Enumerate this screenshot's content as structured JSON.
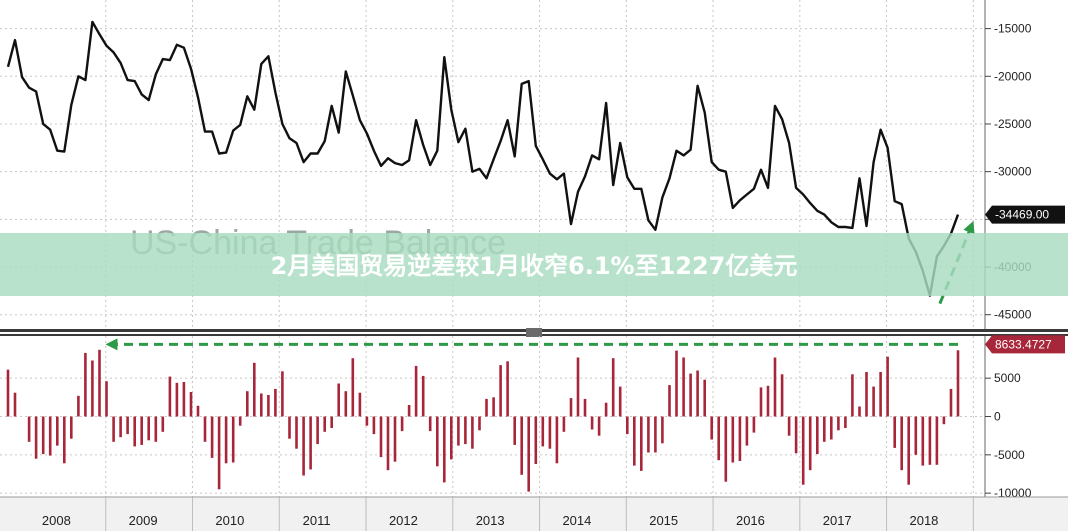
{
  "banner": {
    "text": "2月美国贸易逆差较1月收窄6.1%至1227亿美元",
    "bg_color": "#a8dcc0",
    "text_color": "#ffffff"
  },
  "chart_data": [
    {
      "type": "line",
      "title": "US-China Trade Balance",
      "ylim": [
        -46500,
        -12000
      ],
      "y_ticks": [
        -15000,
        -20000,
        -25000,
        -30000,
        -35000,
        -40000,
        -45000
      ],
      "y_tick_labels": [
        "-15000",
        "-20000",
        "-25000",
        "-30000",
        "-35000",
        "-40000",
        "-45000"
      ],
      "grid": true,
      "line_color": "#111111",
      "last_value_label": "-34469.00",
      "last_value_color": "#111111",
      "series": [
        {
          "values": [
            -19000,
            -16200,
            -20100,
            -21200,
            -21600,
            -25000,
            -25600,
            -27800,
            -27900,
            -23000,
            -20000,
            -20400,
            -14300,
            -15600,
            -16800,
            -17500,
            -18600,
            -20400,
            -20500,
            -21900,
            -22500,
            -19800,
            -18200,
            -18300,
            -16700,
            -17000,
            -19200,
            -22200,
            -25800,
            -25800,
            -28100,
            -28000,
            -25700,
            -25100,
            -22100,
            -23500,
            -18700,
            -17900,
            -21700,
            -25000,
            -26500,
            -27000,
            -29000,
            -28100,
            -28100,
            -26800,
            -23100,
            -25900,
            -19500,
            -22000,
            -24600,
            -26000,
            -27800,
            -29400,
            -28600,
            -29100,
            -29300,
            -28800,
            -24600,
            -27200,
            -29300,
            -27800,
            -18000,
            -23500,
            -26900,
            -25500,
            -30000,
            -29700,
            -30700,
            -28700,
            -26800,
            -24600,
            -28400,
            -20800,
            -20500,
            -27300,
            -28700,
            -30200,
            -30800,
            -30200,
            -35500,
            -32100,
            -30500,
            -28300,
            -28700,
            -22800,
            -31400,
            -27000,
            -30600,
            -31800,
            -31800,
            -35100,
            -36100,
            -32700,
            -30700,
            -27800,
            -28300,
            -27700,
            -21000,
            -23800,
            -29000,
            -29800,
            -30000,
            -33800,
            -33000,
            -32400,
            -31800,
            -29800,
            -31700,
            -23100,
            -24500,
            -27000,
            -31700,
            -32400,
            -33300,
            -34100,
            -34500,
            -35300,
            -35800,
            -35800,
            -35900,
            -30700,
            -35700,
            -29000,
            -25600,
            -27500,
            -33100,
            -33400,
            -37000,
            -38400,
            -40400,
            -43000,
            -38900,
            -37800,
            -36500,
            -34500
          ]
        }
      ],
      "x_ticks": [
        "2008",
        "2009",
        "2010",
        "2011",
        "2012",
        "2013",
        "2014",
        "2015",
        "2016",
        "2017",
        "2018"
      ]
    },
    {
      "type": "bar",
      "ylim": [
        -10500,
        10500
      ],
      "y_ticks": [
        5000,
        0,
        -5000,
        -10000
      ],
      "y_tick_labels": [
        "5000",
        "0",
        "-5000",
        "-10000"
      ],
      "grid": true,
      "bar_color": "#a8263a",
      "last_value_label": "8633.4727",
      "last_value_color": "#a8263a",
      "series": [
        {
          "values": [
            6100,
            3100,
            0,
            -3300,
            -5500,
            -4900,
            -5100,
            -3800,
            -6100,
            -2900,
            2700,
            8300,
            7300,
            8700,
            4600,
            -3300,
            -2700,
            -2300,
            -3900,
            -3700,
            -3100,
            -3300,
            -2000,
            5200,
            4400,
            4500,
            3200,
            1400,
            -3300,
            -5400,
            -9500,
            -6100,
            -6000,
            -1200,
            3300,
            7000,
            3000,
            2800,
            3600,
            5900,
            -2900,
            -4200,
            -7700,
            -6900,
            -3600,
            -2000,
            -1500,
            4300,
            3300,
            7600,
            3100,
            -1200,
            -2300,
            -5300,
            -7000,
            -5900,
            -1900,
            1500,
            6600,
            5300,
            -1900,
            -6500,
            -8600,
            -5600,
            -3800,
            -3600,
            -4200,
            -1800,
            2300,
            2500,
            6700,
            7200,
            -3700,
            -7600,
            -9800,
            -6200,
            -3900,
            -4200,
            -6100,
            -2000,
            2400,
            7700,
            2300,
            -1700,
            -2500,
            1800,
            7600,
            3900,
            -2300,
            -6400,
            -7100,
            -4700,
            -4700,
            -3500,
            4100,
            8600,
            7700,
            5600,
            6000,
            4800,
            -3000,
            -5700,
            -8500,
            -6000,
            -5800,
            -3800,
            -2100,
            3800,
            4000,
            7700,
            5500,
            -2500,
            -4800,
            -8900,
            -7000,
            -4900,
            -3300,
            -3000,
            -1800,
            -1500,
            5500,
            1300,
            5800,
            3900,
            5800,
            7800,
            -4100,
            -7000,
            -8900,
            -5000,
            -6400,
            -6300,
            -6300,
            -1000,
            3600,
            8633
          ]
        }
      ],
      "x_ticks": [
        "2008",
        "2009",
        "2010",
        "2011",
        "2012",
        "2013",
        "2014",
        "2015",
        "2016",
        "2017",
        "2018"
      ]
    }
  ]
}
